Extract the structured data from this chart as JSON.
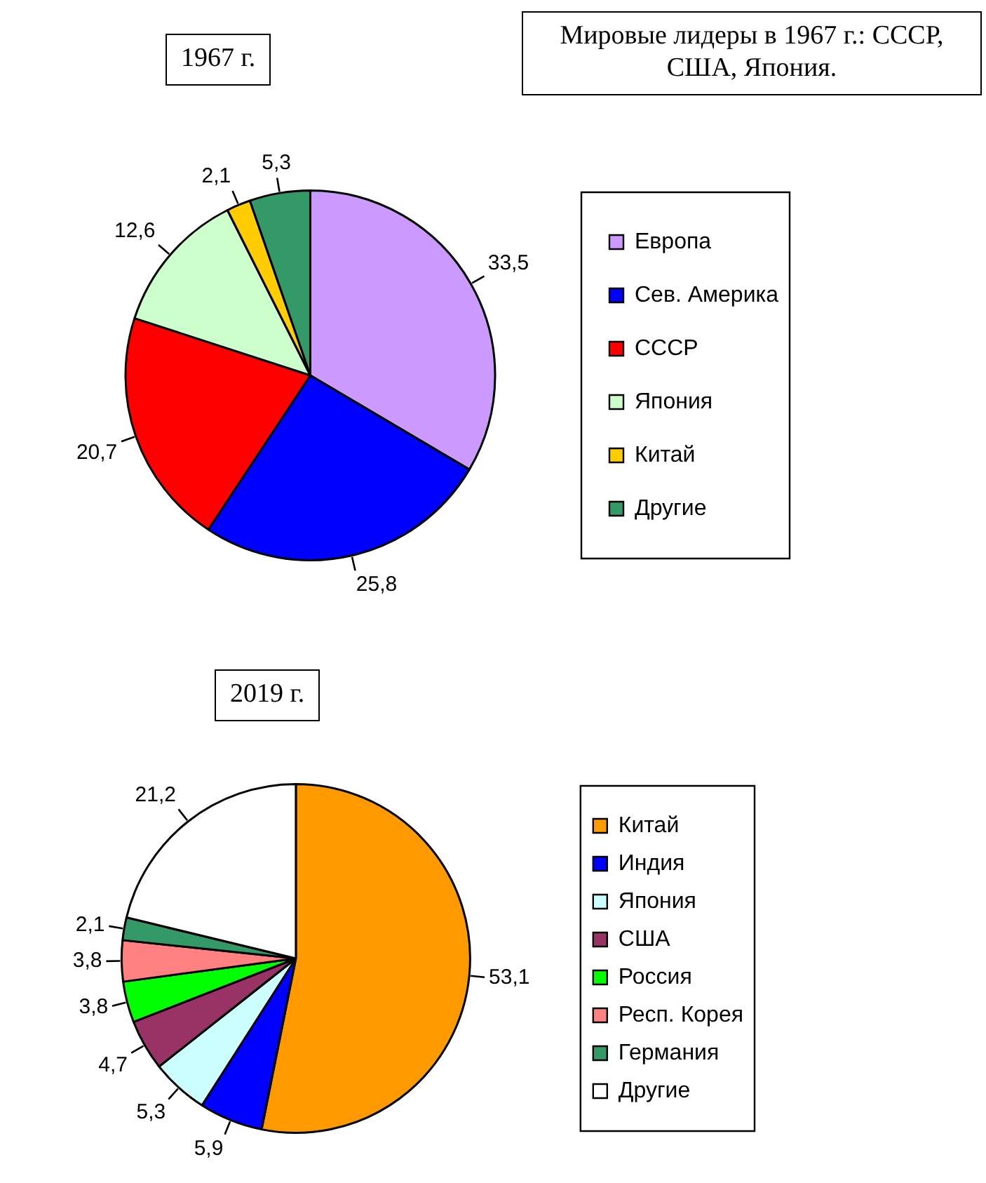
{
  "chart_data": [
    {
      "type": "pie",
      "title": "1967 г.",
      "annotations": [
        "Мировые лидеры в 1967 г.: СССР, США, Япония."
      ],
      "legend": "right",
      "categories": [
        "Европа",
        "Сев. Америка",
        "СССР",
        "Япония",
        "Китай",
        "Другие"
      ],
      "values": [
        33.5,
        25.8,
        20.7,
        12.6,
        2.1,
        5.3
      ],
      "value_labels": [
        "33,5",
        "25,8",
        "20,7",
        "12,6",
        "2,1",
        "5,3"
      ],
      "colors": [
        "#cc99ff",
        "#0000ff",
        "#ff0000",
        "#ccffcc",
        "#ffcc00",
        "#339966"
      ]
    },
    {
      "type": "pie",
      "title": "2019 г.",
      "legend": "right",
      "categories": [
        "Китай",
        "Индия",
        "Япония",
        "США",
        "Россия",
        "Респ. Корея",
        "Германия",
        "Другие"
      ],
      "values": [
        53.1,
        5.9,
        5.3,
        4.7,
        3.8,
        3.8,
        2.1,
        21.2
      ],
      "value_labels": [
        "53,1",
        "5,9",
        "5,3",
        "4,7",
        "3,8",
        "3,8",
        "2,1",
        "21,2"
      ],
      "colors": [
        "#ff9900",
        "#0000ff",
        "#ccffff",
        "#993366",
        "#00ff00",
        "#ff8080",
        "#339966",
        "#ffffff"
      ]
    }
  ]
}
